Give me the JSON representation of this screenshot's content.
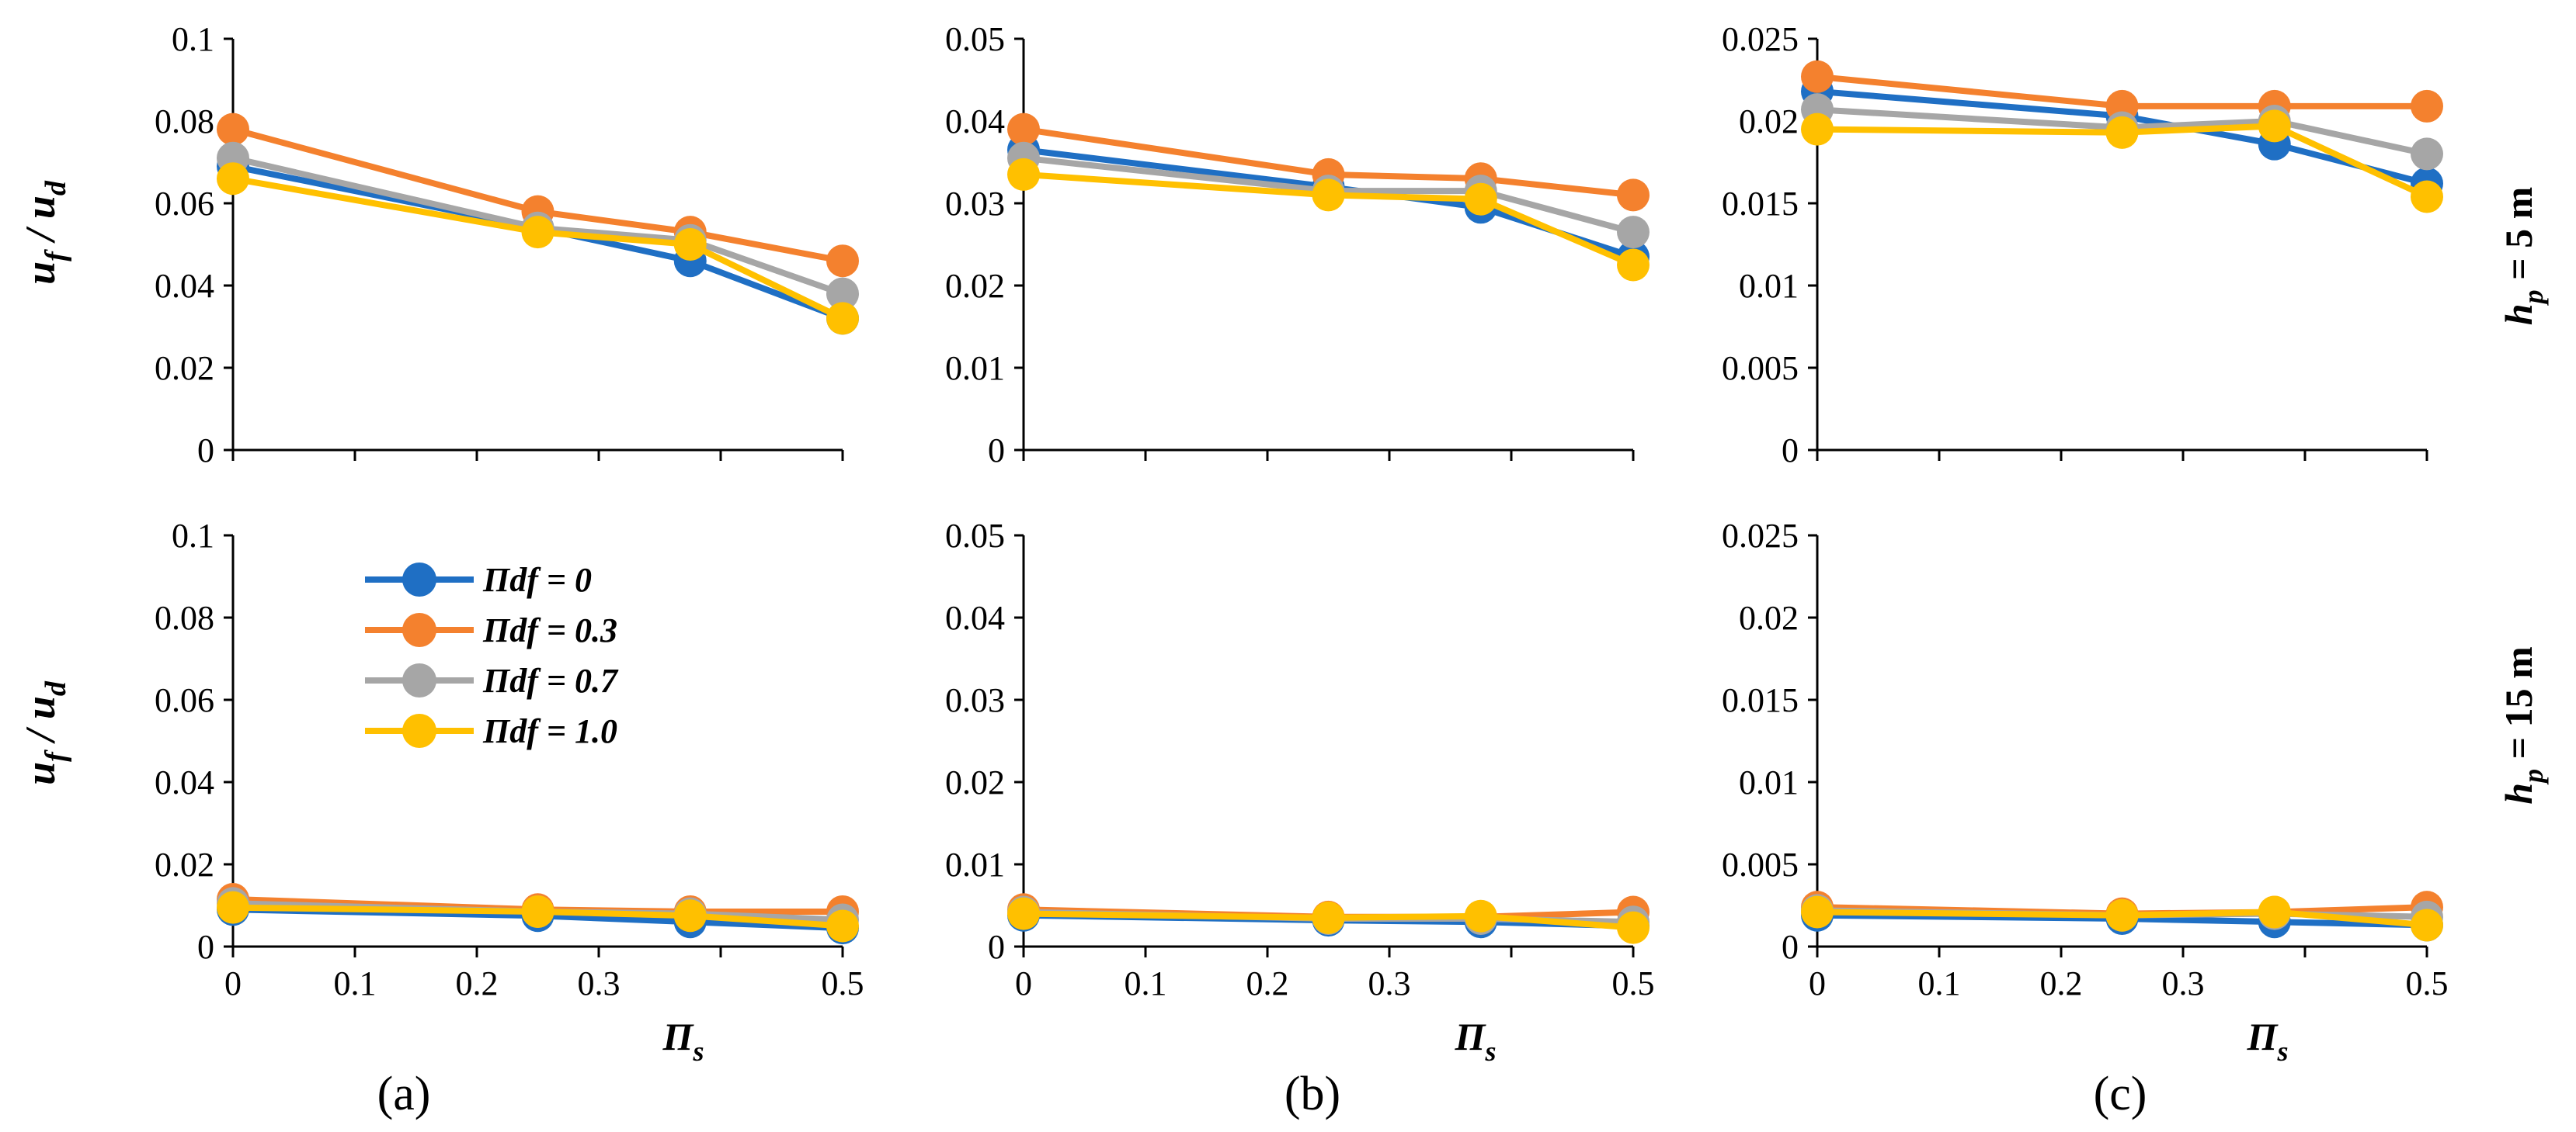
{
  "chart_data": {
    "type": "line",
    "ylabel_main": "u",
    "ylabel_sub1": "f",
    "ylabel_mid": " / ",
    "ylabel_main2": "u",
    "ylabel_sub2": "d",
    "xlabel_main": "Π",
    "xlabel_sub": "s",
    "row_labels": [
      {
        "main": "h",
        "sub": "p",
        "rest": " = 5 m"
      },
      {
        "main": "h",
        "sub": "p",
        "rest": " = 15 m"
      }
    ],
    "column_labels": [
      "(a)",
      "(b)",
      "(c)"
    ],
    "x_tick_labels": [
      "0",
      "0.1",
      "0.2",
      "0.3",
      "",
      "0.5"
    ],
    "x_ticks": [
      0,
      0.1,
      0.2,
      0.3,
      0.4,
      0.5
    ],
    "xlim": [
      0,
      0.5
    ],
    "x": [
      0,
      0.25,
      0.375,
      0.5
    ],
    "legend": {
      "placement": "inside lower-left panel (a)",
      "entries": [
        "Πdf = 0",
        "Πdf = 0.3",
        "Πdf = 0.7",
        "Πdf = 1.0"
      ]
    },
    "series_colors": [
      "#1f6fc4",
      "#f4812e",
      "#a6a6a6",
      "#ffc000"
    ],
    "grid": false,
    "panels": [
      {
        "column": "a",
        "row": "h_p = 5 m",
        "ylim": [
          0,
          0.1
        ],
        "y_ticks": [
          0,
          0.02,
          0.04,
          0.06,
          0.08,
          0.1
        ],
        "y_tick_labels": [
          "0",
          "0.02",
          "0.04",
          "0.06",
          "0.08",
          "0.1"
        ],
        "show_x_tick_labels": false,
        "series": [
          {
            "name": "Πdf = 0",
            "values": [
              0.069,
              0.054,
              0.046,
              0.032
            ]
          },
          {
            "name": "Πdf = 0.3",
            "values": [
              0.078,
              0.058,
              0.053,
              0.046
            ]
          },
          {
            "name": "Πdf = 0.7",
            "values": [
              0.071,
              0.054,
              0.051,
              0.038
            ]
          },
          {
            "name": "Πdf = 1.0",
            "values": [
              0.066,
              0.053,
              0.05,
              0.032
            ]
          }
        ]
      },
      {
        "column": "b",
        "row": "h_p = 5 m",
        "ylim": [
          0,
          0.05
        ],
        "y_ticks": [
          0,
          0.01,
          0.02,
          0.03,
          0.04,
          0.05
        ],
        "y_tick_labels": [
          "0",
          "0.01",
          "0.02",
          "0.03",
          "0.04",
          "0.05"
        ],
        "show_x_tick_labels": false,
        "series": [
          {
            "name": "Πdf = 0",
            "values": [
              0.0365,
              0.032,
              0.0295,
              0.0235
            ]
          },
          {
            "name": "Πdf = 0.3",
            "values": [
              0.039,
              0.0335,
              0.033,
              0.031
            ]
          },
          {
            "name": "Πdf = 0.7",
            "values": [
              0.0355,
              0.0315,
              0.0315,
              0.0265
            ]
          },
          {
            "name": "Πdf = 1.0",
            "values": [
              0.0335,
              0.031,
              0.0305,
              0.0225
            ]
          }
        ]
      },
      {
        "column": "c",
        "row": "h_p = 5 m",
        "ylim": [
          0,
          0.025
        ],
        "y_ticks": [
          0,
          0.005,
          0.01,
          0.015,
          0.02,
          0.025
        ],
        "y_tick_labels": [
          "0",
          "0.005",
          "0.01",
          "0.015",
          "0.02",
          "0.025"
        ],
        "show_x_tick_labels": false,
        "series": [
          {
            "name": "Πdf = 0",
            "values": [
              0.0218,
              0.0203,
              0.0186,
              0.0162
            ]
          },
          {
            "name": "Πdf = 0.3",
            "values": [
              0.0227,
              0.0209,
              0.0209,
              0.0209
            ]
          },
          {
            "name": "Πdf = 0.7",
            "values": [
              0.0207,
              0.0196,
              0.02,
              0.018
            ]
          },
          {
            "name": "Πdf = 1.0",
            "values": [
              0.0195,
              0.0193,
              0.0197,
              0.0154
            ]
          }
        ]
      },
      {
        "column": "a",
        "row": "h_p = 15 m",
        "ylim": [
          0,
          0.1
        ],
        "y_ticks": [
          0,
          0.02,
          0.04,
          0.06,
          0.08,
          0.1
        ],
        "y_tick_labels": [
          "0",
          "0.02",
          "0.04",
          "0.06",
          "0.08",
          "0.1"
        ],
        "show_x_tick_labels": true,
        "series": [
          {
            "name": "Πdf = 0",
            "values": [
              0.009,
              0.0075,
              0.006,
              0.0045
            ]
          },
          {
            "name": "Πdf = 0.3",
            "values": [
              0.0115,
              0.009,
              0.0085,
              0.0085
            ]
          },
          {
            "name": "Πdf = 0.7",
            "values": [
              0.0105,
              0.0085,
              0.008,
              0.0065
            ]
          },
          {
            "name": "Πdf = 1.0",
            "values": [
              0.0095,
              0.0085,
              0.0075,
              0.005
            ]
          }
        ]
      },
      {
        "column": "b",
        "row": "h_p = 15 m",
        "ylim": [
          0,
          0.05
        ],
        "y_ticks": [
          0,
          0.01,
          0.02,
          0.03,
          0.04,
          0.05
        ],
        "y_tick_labels": [
          "0",
          "0.01",
          "0.02",
          "0.03",
          "0.04",
          "0.05"
        ],
        "show_x_tick_labels": true,
        "series": [
          {
            "name": "Πdf = 0",
            "values": [
              0.0038,
              0.0032,
              0.003,
              0.0025
            ]
          },
          {
            "name": "Πdf = 0.3",
            "values": [
              0.0045,
              0.0036,
              0.0036,
              0.0042
            ]
          },
          {
            "name": "Πdf = 0.7",
            "values": [
              0.0042,
              0.0034,
              0.0034,
              0.003
            ]
          },
          {
            "name": "Πdf = 1.0",
            "values": [
              0.004,
              0.0035,
              0.0037,
              0.0023
            ]
          }
        ]
      },
      {
        "column": "c",
        "row": "h_p = 15 m",
        "ylim": [
          0,
          0.025
        ],
        "y_ticks": [
          0,
          0.005,
          0.01,
          0.015,
          0.02,
          0.025
        ],
        "y_tick_labels": [
          "0",
          "0.005",
          "0.01",
          "0.015",
          "0.02",
          "0.025"
        ],
        "show_x_tick_labels": true,
        "series": [
          {
            "name": "Πdf = 0",
            "values": [
              0.0019,
              0.0017,
              0.0015,
              0.0013
            ]
          },
          {
            "name": "Πdf = 0.3",
            "values": [
              0.0024,
              0.002,
              0.0021,
              0.0024
            ]
          },
          {
            "name": "Πdf = 0.7",
            "values": [
              0.0022,
              0.0019,
              0.002,
              0.0018
            ]
          },
          {
            "name": "Πdf = 1.0",
            "values": [
              0.0021,
              0.0019,
              0.0021,
              0.0013
            ]
          }
        ]
      }
    ]
  }
}
